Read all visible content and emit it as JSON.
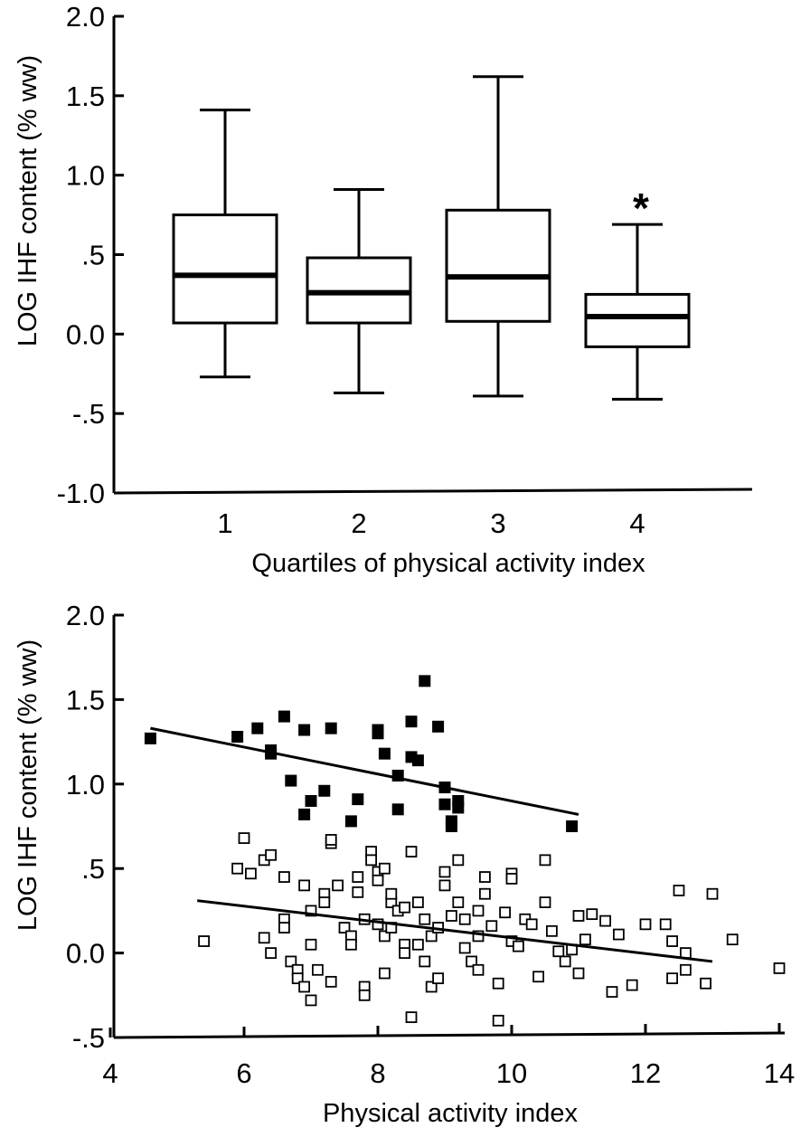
{
  "chart_data": [
    {
      "type": "box",
      "title": "",
      "xlabel": "Quartiles of physical activity index",
      "ylabel": "LOG IHF content (% ww)",
      "ylim": [
        -1.0,
        2.0
      ],
      "yticks": [
        2.0,
        1.5,
        1.0,
        0.5,
        0.0,
        -0.5,
        -1.0
      ],
      "ytick_labels": [
        "2.0",
        "1.5",
        "1.0",
        ".5",
        "0.0",
        "-.5",
        "-1.0"
      ],
      "categories": [
        "1",
        "2",
        "3",
        "4"
      ],
      "boxes": [
        {
          "category": "1",
          "whisker_low": -0.27,
          "q1": 0.07,
          "median": 0.37,
          "q3": 0.75,
          "whisker_high": 1.41
        },
        {
          "category": "2",
          "whisker_low": -0.37,
          "q1": 0.07,
          "median": 0.26,
          "q3": 0.48,
          "whisker_high": 0.91
        },
        {
          "category": "3",
          "whisker_low": -0.39,
          "q1": 0.08,
          "median": 0.36,
          "q3": 0.78,
          "whisker_high": 1.62
        },
        {
          "category": "4",
          "whisker_low": -0.41,
          "q1": -0.08,
          "median": 0.11,
          "q3": 0.25,
          "whisker_high": 0.69
        }
      ],
      "annotations": [
        {
          "text": "*",
          "category": "4"
        }
      ]
    },
    {
      "type": "scatter",
      "title": "",
      "xlabel": "Physical activity index",
      "ylabel": "LOG IHF content (% ww)",
      "xlim": [
        4,
        14
      ],
      "ylim": [
        -0.5,
        2.0
      ],
      "xticks": [
        4,
        6,
        8,
        10,
        12,
        14
      ],
      "xtick_labels": [
        "4",
        "6",
        "8",
        "10",
        "12",
        "14"
      ],
      "yticks": [
        2.0,
        1.5,
        1.0,
        0.5,
        0.0,
        -0.5
      ],
      "ytick_labels": [
        "2.0",
        "1.5",
        "1.0",
        ".5",
        "0.0",
        "-.5"
      ],
      "series": [
        {
          "marker": "filled-square",
          "points": [
            [
              4.6,
              1.27
            ],
            [
              5.9,
              1.28
            ],
            [
              6.2,
              1.33
            ],
            [
              6.4,
              1.2
            ],
            [
              6.4,
              1.18
            ],
            [
              6.6,
              1.4
            ],
            [
              6.7,
              1.02
            ],
            [
              6.9,
              1.32
            ],
            [
              6.9,
              0.82
            ],
            [
              7.0,
              0.9
            ],
            [
              7.2,
              0.96
            ],
            [
              7.3,
              1.33
            ],
            [
              7.6,
              0.78
            ],
            [
              7.7,
              0.91
            ],
            [
              8.0,
              1.3
            ],
            [
              8.0,
              1.32
            ],
            [
              8.1,
              1.18
            ],
            [
              8.3,
              1.05
            ],
            [
              8.3,
              0.85
            ],
            [
              8.5,
              1.37
            ],
            [
              8.5,
              1.16
            ],
            [
              8.6,
              1.14
            ],
            [
              8.7,
              1.61
            ],
            [
              8.9,
              1.34
            ],
            [
              9.0,
              0.98
            ],
            [
              9.0,
              0.88
            ],
            [
              9.1,
              0.78
            ],
            [
              9.1,
              0.75
            ],
            [
              9.2,
              0.9
            ],
            [
              9.2,
              0.86
            ],
            [
              10.9,
              0.75
            ]
          ],
          "fit": [
            [
              4.6,
              1.33
            ],
            [
              11.0,
              0.82
            ]
          ]
        },
        {
          "marker": "open-square",
          "points": [
            [
              5.4,
              0.07
            ],
            [
              5.9,
              0.5
            ],
            [
              6.0,
              0.68
            ],
            [
              6.1,
              0.47
            ],
            [
              6.3,
              0.09
            ],
            [
              6.3,
              0.55
            ],
            [
              6.4,
              0.0
            ],
            [
              6.4,
              0.58
            ],
            [
              6.6,
              0.45
            ],
            [
              6.6,
              0.2
            ],
            [
              6.6,
              0.15
            ],
            [
              6.7,
              -0.05
            ],
            [
              6.8,
              -0.1
            ],
            [
              6.8,
              -0.15
            ],
            [
              6.9,
              -0.2
            ],
            [
              6.9,
              0.4
            ],
            [
              7.0,
              -0.28
            ],
            [
              7.0,
              0.25
            ],
            [
              7.0,
              0.05
            ],
            [
              7.1,
              -0.1
            ],
            [
              7.2,
              0.35
            ],
            [
              7.2,
              0.3
            ],
            [
              7.3,
              0.65
            ],
            [
              7.3,
              0.67
            ],
            [
              7.3,
              -0.17
            ],
            [
              7.4,
              0.4
            ],
            [
              7.5,
              0.15
            ],
            [
              7.6,
              0.1
            ],
            [
              7.6,
              0.05
            ],
            [
              7.7,
              0.36
            ],
            [
              7.7,
              0.45
            ],
            [
              7.8,
              -0.2
            ],
            [
              7.8,
              -0.25
            ],
            [
              7.8,
              0.2
            ],
            [
              7.9,
              0.6
            ],
            [
              7.9,
              0.55
            ],
            [
              8.0,
              0.48
            ],
            [
              8.0,
              0.43
            ],
            [
              8.0,
              0.17
            ],
            [
              8.1,
              0.1
            ],
            [
              8.1,
              -0.12
            ],
            [
              8.1,
              0.5
            ],
            [
              8.2,
              0.3
            ],
            [
              8.2,
              0.35
            ],
            [
              8.2,
              0.15
            ],
            [
              8.3,
              0.25
            ],
            [
              8.4,
              0.27
            ],
            [
              8.4,
              0.05
            ],
            [
              8.4,
              0.0
            ],
            [
              8.5,
              0.6
            ],
            [
              8.5,
              -0.38
            ],
            [
              8.6,
              0.3
            ],
            [
              8.6,
              0.05
            ],
            [
              8.7,
              -0.05
            ],
            [
              8.7,
              0.2
            ],
            [
              8.8,
              0.1
            ],
            [
              8.8,
              -0.2
            ],
            [
              8.9,
              0.15
            ],
            [
              8.9,
              -0.15
            ],
            [
              9.0,
              0.48
            ],
            [
              9.0,
              0.4
            ],
            [
              9.1,
              0.22
            ],
            [
              9.2,
              0.55
            ],
            [
              9.2,
              0.3
            ],
            [
              9.3,
              0.2
            ],
            [
              9.3,
              0.03
            ],
            [
              9.4,
              -0.05
            ],
            [
              9.5,
              0.25
            ],
            [
              9.5,
              0.1
            ],
            [
              9.5,
              -0.1
            ],
            [
              9.6,
              0.35
            ],
            [
              9.6,
              0.45
            ],
            [
              9.7,
              0.16
            ],
            [
              9.8,
              -0.4
            ],
            [
              9.8,
              -0.18
            ],
            [
              9.9,
              0.24
            ],
            [
              10.0,
              0.47
            ],
            [
              10.0,
              0.44
            ],
            [
              10.0,
              0.07
            ],
            [
              10.1,
              0.04
            ],
            [
              10.2,
              0.2
            ],
            [
              10.3,
              0.17
            ],
            [
              10.4,
              -0.14
            ],
            [
              10.5,
              0.55
            ],
            [
              10.5,
              0.3
            ],
            [
              10.6,
              0.13
            ],
            [
              10.7,
              0.01
            ],
            [
              10.8,
              -0.05
            ],
            [
              10.9,
              0.02
            ],
            [
              11.0,
              0.22
            ],
            [
              11.0,
              -0.12
            ],
            [
              11.1,
              0.08
            ],
            [
              11.2,
              0.23
            ],
            [
              11.4,
              0.19
            ],
            [
              11.5,
              -0.23
            ],
            [
              11.6,
              0.11
            ],
            [
              11.8,
              -0.19
            ],
            [
              12.0,
              0.17
            ],
            [
              12.3,
              0.17
            ],
            [
              12.4,
              0.07
            ],
            [
              12.4,
              -0.15
            ],
            [
              12.5,
              0.37
            ],
            [
              12.6,
              -0.1
            ],
            [
              12.6,
              0.0
            ],
            [
              12.9,
              -0.18
            ],
            [
              13.0,
              0.35
            ],
            [
              13.3,
              0.08
            ],
            [
              14.0,
              -0.09
            ]
          ],
          "fit": [
            [
              5.3,
              0.31
            ],
            [
              13.0,
              -0.05
            ]
          ]
        }
      ]
    }
  ]
}
